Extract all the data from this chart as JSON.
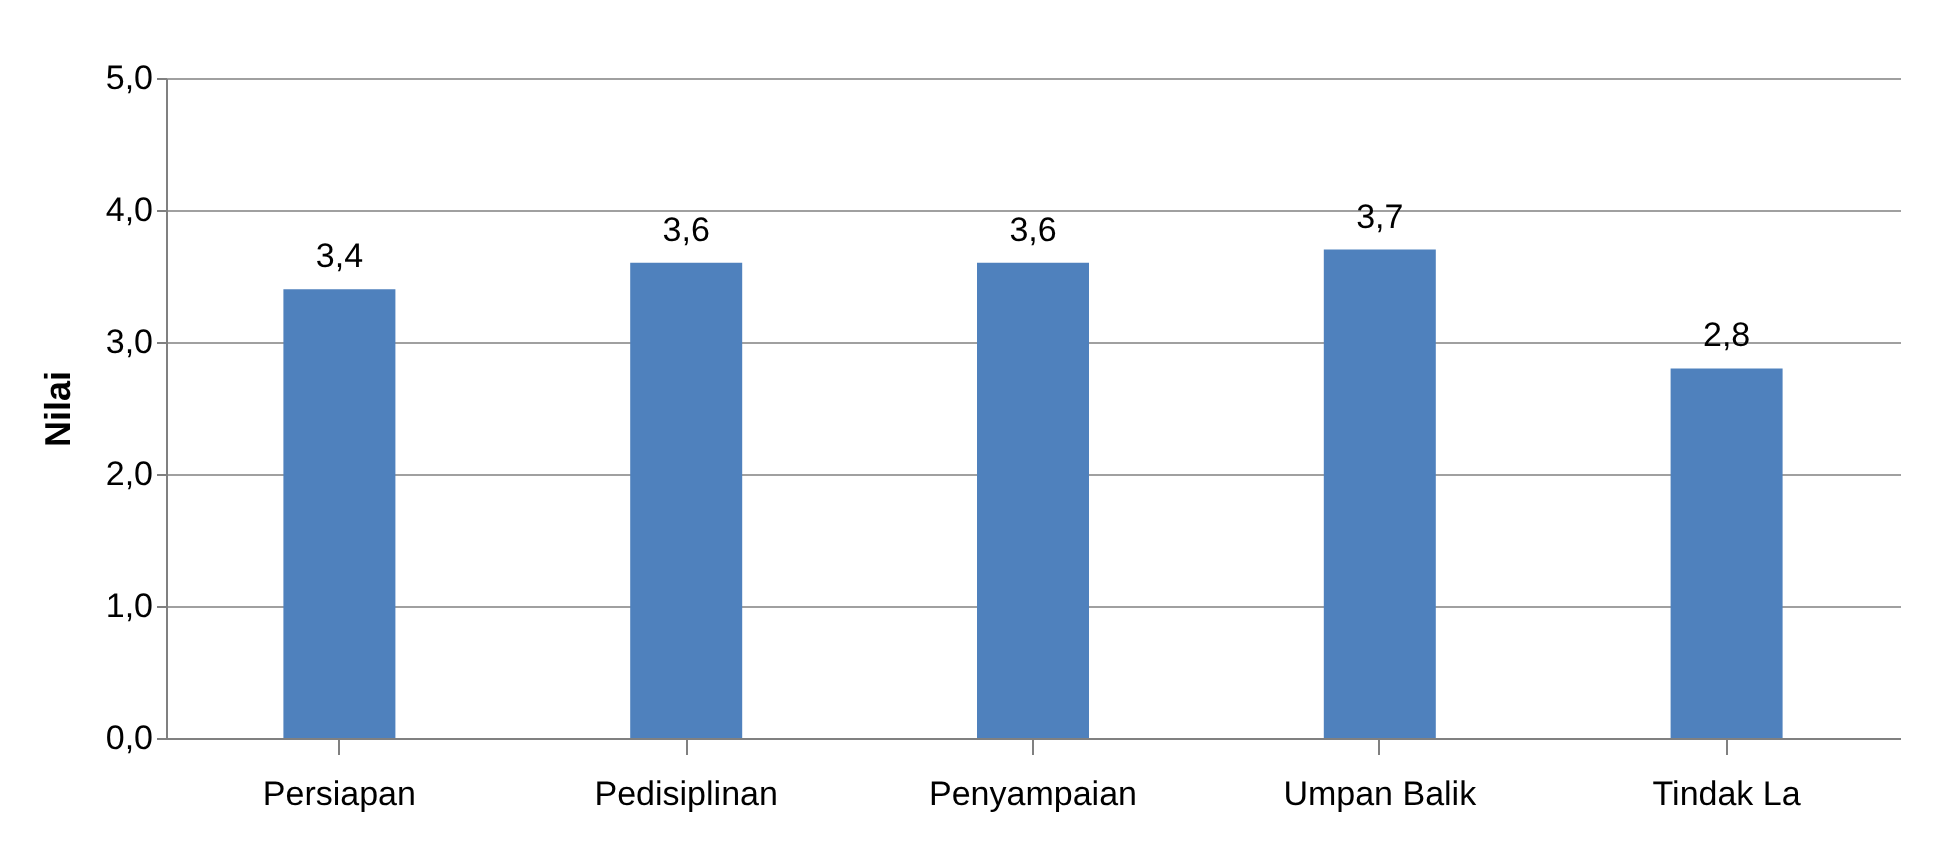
{
  "chart_data": {
    "type": "bar",
    "ylabel": "Nilai",
    "categories": [
      "Persiapan",
      "Pedisiplinan",
      "Penyampaian",
      "Umpan Balik",
      "Tindak La"
    ],
    "values": [
      3.4,
      3.6,
      3.6,
      3.7,
      2.8
    ],
    "value_labels": [
      "3,4",
      "3,6",
      "3,6",
      "3,7",
      "2,8"
    ],
    "color": "#4f81bd",
    "ylim": [
      0,
      5
    ],
    "yticks": [
      {
        "value": 0,
        "label": "0,0"
      },
      {
        "value": 1,
        "label": "1,0"
      },
      {
        "value": 2,
        "label": "2,0"
      },
      {
        "value": 3,
        "label": "3,0"
      },
      {
        "value": 4,
        "label": "4,0"
      },
      {
        "value": 5,
        "label": "5,0"
      }
    ],
    "grid": true
  }
}
